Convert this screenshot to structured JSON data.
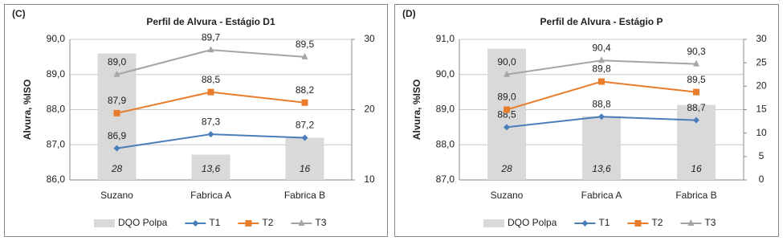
{
  "chart_data": [
    {
      "type": "bar_line",
      "panel": "(C)",
      "title": "Perfil de Alvura  - Estágio D1",
      "ylabel": "Alvura, %ISO",
      "categories": [
        "Suzano",
        "Fabrica A",
        "Fabrica B"
      ],
      "ylim": [
        86,
        90
      ],
      "yticks": [
        {
          "value": 86,
          "label": "86,0"
        },
        {
          "value": 87,
          "label": "87,0"
        },
        {
          "value": 88,
          "label": "88,0"
        },
        {
          "value": 89,
          "label": "89,0"
        },
        {
          "value": 90,
          "label": "90,0"
        }
      ],
      "y2lim": [
        10,
        30
      ],
      "y2ticks": [
        10,
        20,
        30
      ],
      "grid": true,
      "legend": "bottom",
      "series": [
        {
          "name": "DQO Polpa",
          "type": "bar",
          "axis": "y2",
          "color": "#d9d9d9",
          "values": [
            28,
            13.6,
            16
          ],
          "value_labels": [
            "28",
            "13,6",
            "16"
          ]
        },
        {
          "name": "T1",
          "type": "line",
          "marker": "diamond",
          "color": "#4a7ebb",
          "values": [
            86.9,
            87.3,
            87.2
          ],
          "value_labels": [
            "86,9",
            "87,3",
            "87,2"
          ]
        },
        {
          "name": "T2",
          "type": "line",
          "marker": "square",
          "color": "#e87d2c",
          "values": [
            87.9,
            88.5,
            88.2
          ],
          "value_labels": [
            "87,9",
            "88,5",
            "88,2"
          ]
        },
        {
          "name": "T3",
          "type": "line",
          "marker": "triangle",
          "color": "#a5a5a5",
          "values": [
            89.0,
            89.7,
            89.5
          ],
          "value_labels": [
            "89,0",
            "89,7",
            "89,5"
          ]
        }
      ]
    },
    {
      "type": "bar_line",
      "panel": "(D)",
      "title": "Perfil de Alvura  - Estágio P",
      "ylabel": "Alvura, %ISO",
      "categories": [
        "Suzano",
        "Fabrica A",
        "Fabrica B"
      ],
      "ylim": [
        87,
        91
      ],
      "yticks": [
        {
          "value": 87,
          "label": "87,0"
        },
        {
          "value": 88,
          "label": "88,0"
        },
        {
          "value": 89,
          "label": "89,0"
        },
        {
          "value": 90,
          "label": "90,0"
        },
        {
          "value": 91,
          "label": "91,0"
        }
      ],
      "y2lim": [
        0,
        30
      ],
      "y2ticks": [
        0,
        5,
        10,
        15,
        20,
        25,
        30
      ],
      "grid": true,
      "legend": "bottom",
      "series": [
        {
          "name": "DQO Polpa",
          "type": "bar",
          "axis": "y2",
          "color": "#d9d9d9",
          "values": [
            28,
            13.6,
            16
          ],
          "value_labels": [
            "28",
            "13,6",
            "16"
          ]
        },
        {
          "name": "T1",
          "type": "line",
          "marker": "diamond",
          "color": "#4a7ebb",
          "values": [
            88.5,
            88.8,
            88.7
          ],
          "value_labels": [
            "88,5",
            "88,8",
            "88,7"
          ]
        },
        {
          "name": "T2",
          "type": "line",
          "marker": "square",
          "color": "#e87d2c",
          "values": [
            89.0,
            89.8,
            89.5
          ],
          "value_labels": [
            "89,0",
            "89,8",
            "89,5"
          ]
        },
        {
          "name": "T3",
          "type": "line",
          "marker": "triangle",
          "color": "#a5a5a5",
          "values": [
            90.0,
            90.4,
            90.3
          ],
          "value_labels": [
            "90,0",
            "90,4",
            "90,3"
          ]
        }
      ]
    }
  ]
}
